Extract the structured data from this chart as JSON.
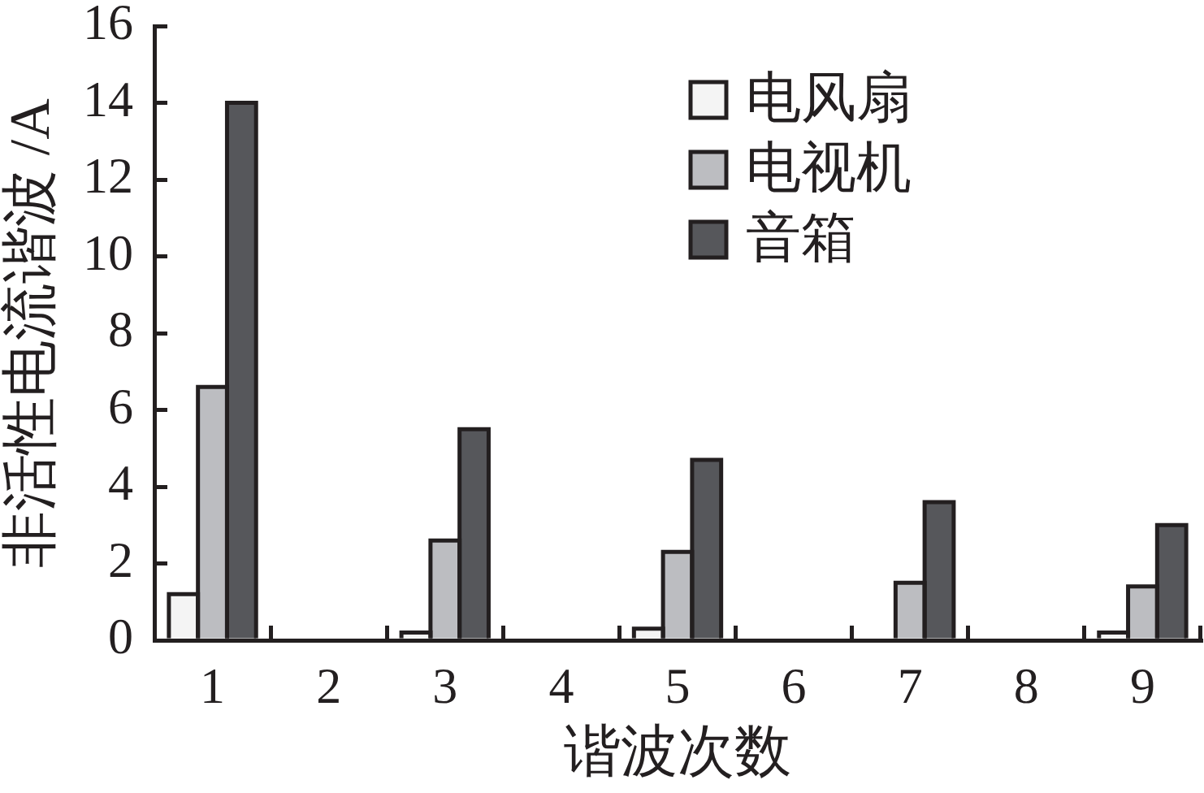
{
  "chart_data": {
    "type": "bar",
    "xlabel": "谐波次数",
    "ylabel": "非活性电流谐波 /A",
    "categories": [
      "1",
      "2",
      "3",
      "4",
      "5",
      "6",
      "7",
      "8",
      "9"
    ],
    "series": [
      {
        "name": "电风扇",
        "color": "#f4f4f4",
        "values": [
          1.2,
          null,
          0.2,
          null,
          0.3,
          null,
          null,
          null,
          0.2
        ]
      },
      {
        "name": "电视机",
        "color": "#bcbdc1",
        "values": [
          6.6,
          null,
          2.6,
          null,
          2.3,
          null,
          1.5,
          null,
          1.4
        ]
      },
      {
        "name": "音箱",
        "color": "#56575b",
        "values": [
          14,
          null,
          5.5,
          null,
          4.7,
          null,
          3.6,
          null,
          3.0
        ]
      }
    ],
    "ylim": [
      0,
      16
    ],
    "yticks": [
      0,
      2,
      4,
      6,
      8,
      10,
      12,
      14,
      16
    ],
    "legend": "top right"
  }
}
